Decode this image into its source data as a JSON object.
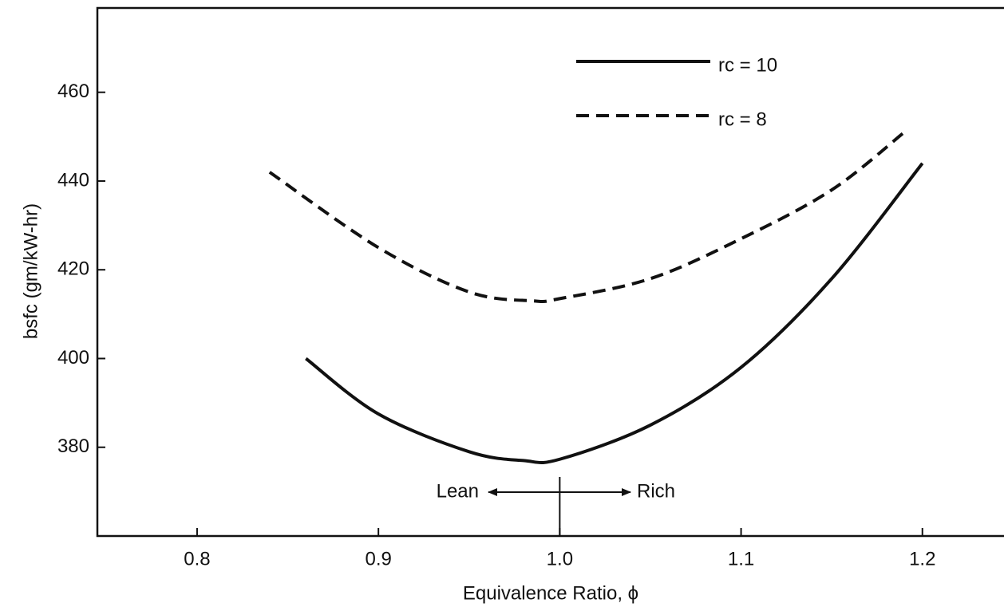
{
  "chart_data": {
    "type": "line",
    "x_label": "Equivalence Ratio, ϕ",
    "y_label": "bsfc (gm/kW-hr)",
    "annotations": [
      "Lean",
      "Rich"
    ],
    "xlim": [
      0.745,
      1.245
    ],
    "xticks": [
      0.8,
      0.9,
      {
        "value": 1,
        "label": "1.0"
      },
      1.1,
      1.2
    ],
    "ylim": [
      360,
      479
    ],
    "yticks": [
      380,
      400,
      420,
      440,
      460
    ],
    "legend": "upper right",
    "series": [
      {
        "name": "rc = 10",
        "color": "#111111",
        "style": "solid",
        "x": [
          0.86,
          0.9,
          0.95,
          0.98,
          1.0,
          1.05,
          1.1,
          1.15,
          1.2
        ],
        "values": [
          400,
          387.5,
          379,
          377,
          377.3,
          385,
          398,
          418,
          444
        ]
      },
      {
        "name": "rc = 8",
        "color": "#111111",
        "style": "dashed",
        "x": [
          0.84,
          0.9,
          0.95,
          0.985,
          1.0,
          1.05,
          1.1,
          1.15,
          1.19
        ],
        "values": [
          442,
          425,
          415,
          413,
          413.5,
          418,
          427,
          438,
          451
        ]
      }
    ]
  }
}
